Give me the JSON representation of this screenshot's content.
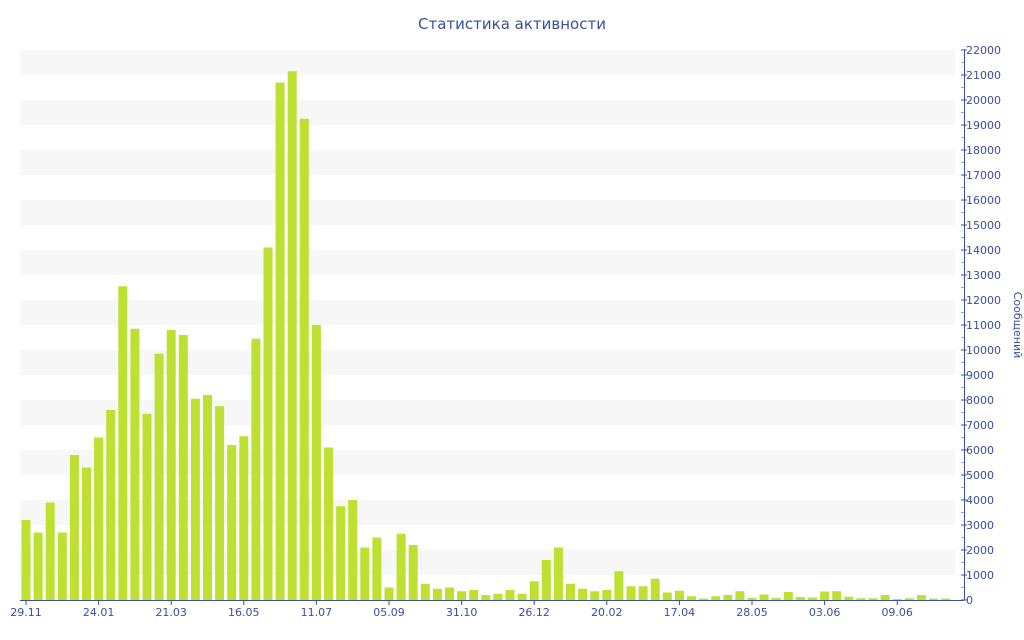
{
  "chart_data": {
    "type": "bar",
    "title": "Статистика активности",
    "ylabel": "Сообщений",
    "xlabel": "",
    "ylim": [
      0,
      22000
    ],
    "y_axis_position": "right",
    "y_tick_step": 1000,
    "grid": "alternating horizontal bands",
    "colors": {
      "bar": "#bde032",
      "axis": "#3a4e9c",
      "band": "#f7f7f7"
    },
    "x_tick_labels": [
      "29.11",
      "24.01",
      "21.03",
      "16.05",
      "11.07",
      "05.09",
      "31.10",
      "26.12",
      "20.02",
      "17.04",
      "28.05",
      "03.06",
      "09.06"
    ],
    "x_tick_every": 6,
    "values": [
      3200,
      2700,
      3900,
      2700,
      5800,
      5300,
      6500,
      7600,
      12550,
      10850,
      7450,
      9850,
      10800,
      10600,
      8050,
      8200,
      7750,
      6200,
      6550,
      10450,
      14100,
      20700,
      21150,
      19250,
      11000,
      6100,
      3750,
      4000,
      2100,
      2500,
      500,
      2650,
      2200,
      650,
      450,
      500,
      350,
      400,
      200,
      250,
      400,
      250,
      750,
      1600,
      2100,
      650,
      450,
      350,
      400,
      1150,
      550,
      550,
      850,
      300,
      370,
      150,
      60,
      150,
      200,
      350,
      80,
      220,
      80,
      320,
      120,
      100,
      340,
      350,
      130,
      70,
      70,
      200,
      40,
      70,
      200,
      60,
      60
    ]
  }
}
